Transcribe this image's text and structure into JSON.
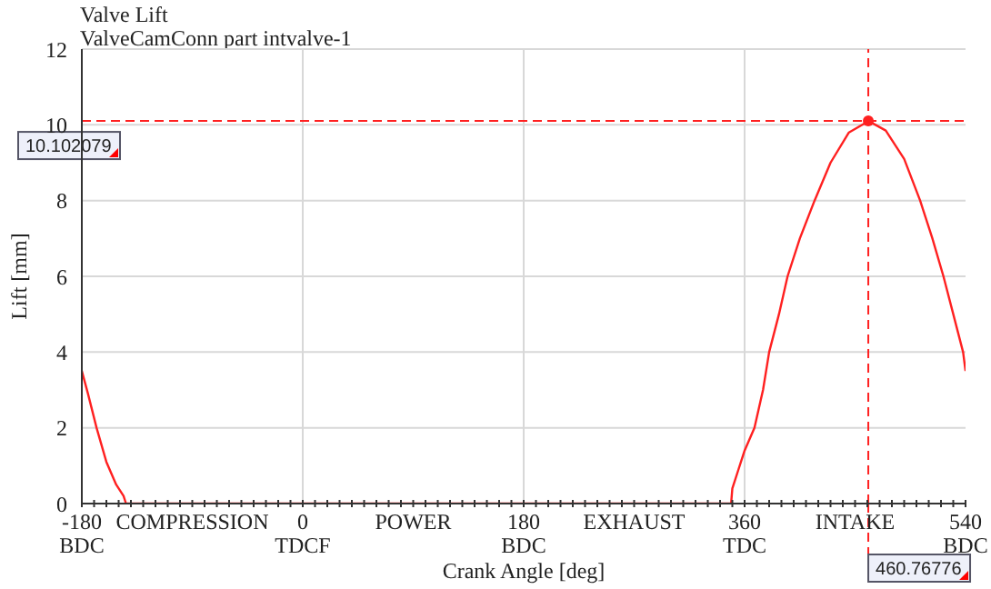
{
  "chart_data": {
    "type": "line",
    "title": "Valve Lift",
    "subtitle": "ValveCamConn part intvalve-1",
    "xlabel": "Crank Angle [deg]",
    "ylabel": "Lift [mm]",
    "series": [
      {
        "color": "#ff2020",
        "x": [
          -180,
          -175,
          -168,
          -160,
          -152,
          -146,
          -144,
          0,
          180,
          349,
          350,
          355,
          360,
          368,
          375,
          380,
          388,
          395,
          405,
          417,
          430,
          445,
          461,
          475,
          490,
          503,
          513,
          522,
          530,
          538,
          540
        ],
        "values": [
          3.5,
          2.9,
          2,
          1.1,
          0.5,
          0.2,
          0,
          0,
          0,
          0,
          0.4,
          0.9,
          1.4,
          2,
          3,
          4,
          5,
          6,
          7,
          8,
          9,
          9.8,
          10.1,
          9.85,
          9.1,
          8,
          7,
          6,
          5,
          4,
          3.5
        ]
      },
      {
        "type": "scatter",
        "color": "#ff2020",
        "marker": "circle",
        "x": [
          460.76776
        ],
        "values": [
          10.102079
        ]
      }
    ],
    "marker": "none",
    "line_style": "solid",
    "grid": true,
    "xlim": [
      -180,
      540
    ],
    "ylim": [
      0,
      12
    ],
    "yticks": [
      0,
      2,
      4,
      6,
      8,
      10,
      12
    ],
    "xticks": [
      {
        "value": -180,
        "label": "-180\nBDC"
      },
      {
        "value": -170,
        "label": null
      },
      {
        "value": -160,
        "label": null
      },
      {
        "value": -150,
        "label": null
      },
      {
        "value": -140,
        "label": null
      },
      {
        "value": -130,
        "label": null
      },
      {
        "value": -120,
        "label": null
      },
      {
        "value": -110,
        "label": null
      },
      {
        "value": -100,
        "label": null
      },
      {
        "value": -90,
        "label": "COMPRESSION"
      },
      {
        "value": -80,
        "label": null
      },
      {
        "value": -70,
        "label": null
      },
      {
        "value": -60,
        "label": null
      },
      {
        "value": -50,
        "label": null
      },
      {
        "value": -40,
        "label": null
      },
      {
        "value": -30,
        "label": null
      },
      {
        "value": -20,
        "label": null
      },
      {
        "value": -10,
        "label": null
      },
      {
        "value": 0,
        "label": "0\nTDCF"
      },
      {
        "value": 10,
        "label": null
      },
      {
        "value": 20,
        "label": null
      },
      {
        "value": 30,
        "label": null
      },
      {
        "value": 40,
        "label": null
      },
      {
        "value": 50,
        "label": null
      },
      {
        "value": 60,
        "label": null
      },
      {
        "value": 70,
        "label": null
      },
      {
        "value": 80,
        "label": null
      },
      {
        "value": 90,
        "label": "POWER"
      },
      {
        "value": 100,
        "label": null
      },
      {
        "value": 110,
        "label": null
      },
      {
        "value": 120,
        "label": null
      },
      {
        "value": 130,
        "label": null
      },
      {
        "value": 140,
        "label": null
      },
      {
        "value": 150,
        "label": null
      },
      {
        "value": 160,
        "label": null
      },
      {
        "value": 170,
        "label": null
      },
      {
        "value": 180,
        "label": "180\nBDC"
      },
      {
        "value": 190,
        "label": null
      },
      {
        "value": 200,
        "label": null
      },
      {
        "value": 210,
        "label": null
      },
      {
        "value": 220,
        "label": null
      },
      {
        "value": 230,
        "label": null
      },
      {
        "value": 240,
        "label": null
      },
      {
        "value": 250,
        "label": null
      },
      {
        "value": 260,
        "label": null
      },
      {
        "value": 270,
        "label": "EXHAUST"
      },
      {
        "value": 280,
        "label": null
      },
      {
        "value": 290,
        "label": null
      },
      {
        "value": 300,
        "label": null
      },
      {
        "value": 310,
        "label": null
      },
      {
        "value": 320,
        "label": null
      },
      {
        "value": 330,
        "label": null
      },
      {
        "value": 340,
        "label": null
      },
      {
        "value": 350,
        "label": null
      },
      {
        "value": 360,
        "label": "360\nTDC"
      },
      {
        "value": 370,
        "label": null
      },
      {
        "value": 380,
        "label": null
      },
      {
        "value": 390,
        "label": null
      },
      {
        "value": 400,
        "label": null
      },
      {
        "value": 410,
        "label": null
      },
      {
        "value": 420,
        "label": null
      },
      {
        "value": 430,
        "label": null
      },
      {
        "value": 440,
        "label": null
      },
      {
        "value": 450,
        "label": "INTAKE"
      },
      {
        "value": 460,
        "label": null
      },
      {
        "value": 470,
        "label": null
      },
      {
        "value": 480,
        "label": null
      },
      {
        "value": 490,
        "label": null
      },
      {
        "value": 500,
        "label": null
      },
      {
        "value": 510,
        "label": null
      },
      {
        "value": 520,
        "label": null
      },
      {
        "value": 530,
        "label": null
      },
      {
        "value": 540,
        "label": "540\nBDC"
      }
    ],
    "ref_lines": [
      {
        "axis": "y",
        "value": 10.102079,
        "label": "10.102079",
        "color": "#ff2020",
        "line_style": "dashed"
      },
      {
        "axis": "x",
        "value": 460.76776,
        "label": "460.76776",
        "color": "#ff2020",
        "line_style": "dashed"
      }
    ]
  }
}
